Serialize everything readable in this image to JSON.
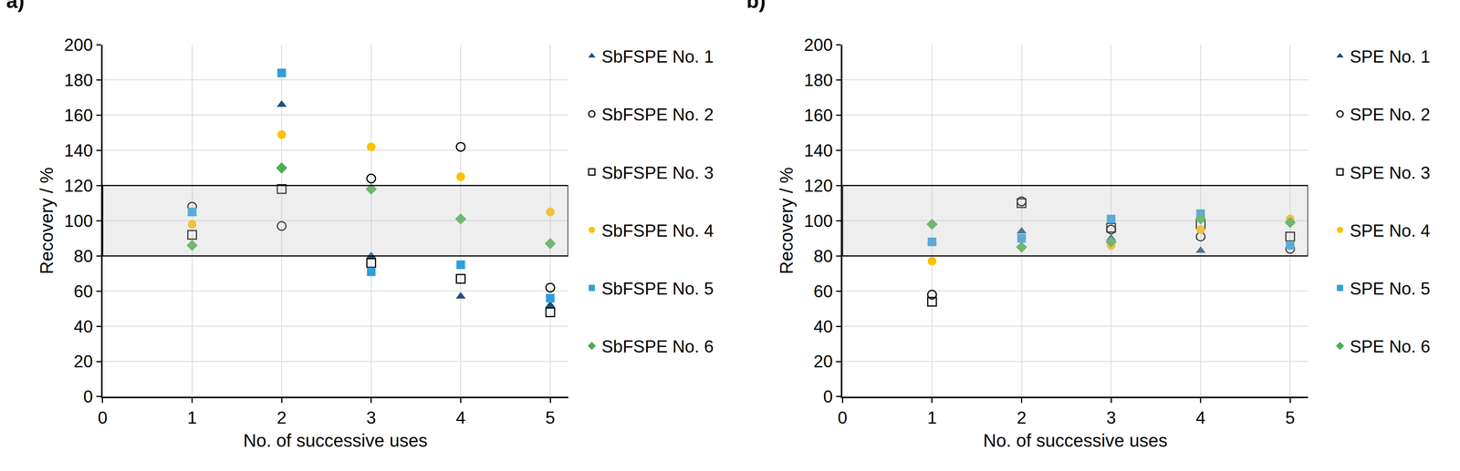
{
  "chart_data": [
    {
      "type": "scatter",
      "label": "a)",
      "x_label": "No. of successive uses",
      "y_label": "Recovery / %",
      "x": [
        1,
        2,
        3,
        4,
        5
      ],
      "xlim": [
        0,
        5.2
      ],
      "xticks": [
        0,
        1,
        2,
        3,
        4,
        5
      ],
      "ylim": [
        0,
        200
      ],
      "yticks": [
        0,
        20,
        40,
        60,
        80,
        100,
        120,
        140,
        160,
        180,
        200
      ],
      "grid": true,
      "acceptance_range": [
        80,
        120
      ],
      "series": [
        {
          "name": "SbFSPE No. 1",
          "color": "#1f4e79",
          "marker": "triangle-up",
          "values": [
            104,
            166,
            80,
            57,
            52
          ]
        },
        {
          "name": "SbFSPE No. 2",
          "color": "#000000",
          "marker": "circle-open",
          "values": [
            108,
            97,
            124,
            142,
            62
          ]
        },
        {
          "name": "SbFSPE No. 3",
          "color": "#000000",
          "marker": "square-open",
          "values": [
            92,
            118,
            76,
            67,
            48
          ]
        },
        {
          "name": "SbFSPE No. 4",
          "color": "#ffc000",
          "marker": "circle",
          "values": [
            98,
            149,
            142,
            125,
            105
          ]
        },
        {
          "name": "SbFSPE No. 5",
          "color": "#2e9fdc",
          "marker": "square",
          "values": [
            105,
            184,
            71,
            75,
            56
          ]
        },
        {
          "name": "SbFSPE No. 6",
          "color": "#4caf50",
          "marker": "diamond",
          "values": [
            86,
            130,
            118,
            101,
            87
          ]
        }
      ]
    },
    {
      "type": "scatter",
      "label": "b)",
      "x_label": "No. of successive uses",
      "y_label": "Recovery / %",
      "x": [
        1,
        2,
        3,
        4,
        5
      ],
      "xlim": [
        0,
        5.2
      ],
      "xticks": [
        0,
        1,
        2,
        3,
        4,
        5
      ],
      "ylim": [
        0,
        200
      ],
      "yticks": [
        0,
        20,
        40,
        60,
        80,
        100,
        120,
        140,
        160,
        180,
        200
      ],
      "grid": true,
      "acceptance_range": [
        80,
        120
      ],
      "series": [
        {
          "name": "SPE No. 1",
          "color": "#1f4e79",
          "marker": "triangle-up",
          "values": [
            88,
            94,
            90,
            83,
            86
          ]
        },
        {
          "name": "SPE No. 2",
          "color": "#000000",
          "marker": "circle-open",
          "values": [
            58,
            111,
            95,
            91,
            84
          ]
        },
        {
          "name": "SPE No. 3",
          "color": "#000000",
          "marker": "square-open",
          "values": [
            54,
            110,
            96,
            98,
            91
          ]
        },
        {
          "name": "SPE No. 4",
          "color": "#ffc000",
          "marker": "circle",
          "values": [
            77,
            90,
            86,
            95,
            101
          ]
        },
        {
          "name": "SPE No. 5",
          "color": "#2e9fdc",
          "marker": "square",
          "values": [
            88,
            90,
            101,
            104,
            86
          ]
        },
        {
          "name": "SPE No. 6",
          "color": "#4caf50",
          "marker": "diamond",
          "values": [
            98,
            85,
            88,
            101,
            99
          ]
        }
      ]
    }
  ]
}
